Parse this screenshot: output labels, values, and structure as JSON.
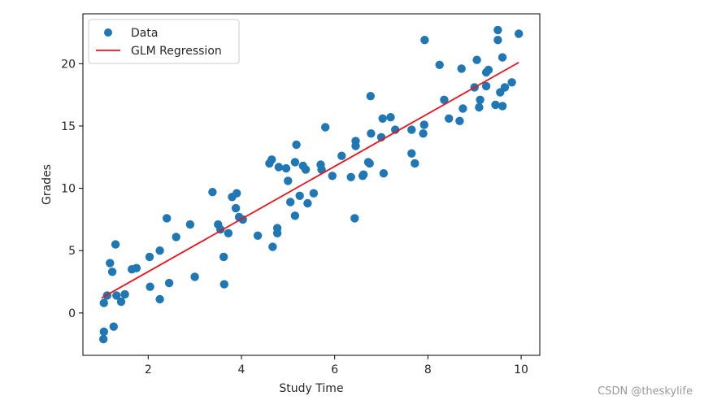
{
  "chart_data": {
    "type": "scatter",
    "title": "",
    "xlabel": "Study Time",
    "ylabel": "Grades",
    "xlim": [
      0.6,
      10.4
    ],
    "ylim": [
      -3.4,
      24.0
    ],
    "xticks": [
      2,
      4,
      6,
      8,
      10
    ],
    "yticks": [
      0,
      5,
      10,
      15,
      20
    ],
    "grid": false,
    "legend_position": "top-left",
    "series": [
      {
        "name": "Data",
        "kind": "scatter",
        "color": "#1f77b4",
        "points": [
          [
            1.05,
            0.8
          ],
          [
            1.05,
            -1.5
          ],
          [
            1.04,
            -2.1
          ],
          [
            1.12,
            1.4
          ],
          [
            1.18,
            4.0
          ],
          [
            1.23,
            3.3
          ],
          [
            1.26,
            -1.1
          ],
          [
            1.3,
            5.5
          ],
          [
            1.32,
            1.4
          ],
          [
            1.42,
            0.9
          ],
          [
            1.5,
            1.5
          ],
          [
            1.65,
            3.5
          ],
          [
            1.75,
            3.6
          ],
          [
            2.03,
            4.5
          ],
          [
            2.04,
            2.1
          ],
          [
            2.25,
            5.0
          ],
          [
            2.25,
            1.1
          ],
          [
            2.4,
            7.6
          ],
          [
            2.45,
            2.4
          ],
          [
            2.6,
            6.1
          ],
          [
            2.9,
            7.1
          ],
          [
            3.0,
            2.9
          ],
          [
            3.38,
            9.7
          ],
          [
            3.5,
            7.1
          ],
          [
            3.55,
            6.7
          ],
          [
            3.62,
            4.5
          ],
          [
            3.63,
            2.3
          ],
          [
            3.72,
            6.4
          ],
          [
            3.8,
            9.3
          ],
          [
            3.88,
            8.4
          ],
          [
            3.9,
            9.6
          ],
          [
            3.95,
            7.7
          ],
          [
            4.03,
            7.5
          ],
          [
            4.35,
            6.2
          ],
          [
            4.6,
            12.0
          ],
          [
            4.65,
            12.3
          ],
          [
            4.67,
            5.3
          ],
          [
            4.77,
            6.8
          ],
          [
            4.77,
            6.4
          ],
          [
            4.8,
            11.7
          ],
          [
            4.96,
            11.6
          ],
          [
            5.0,
            10.6
          ],
          [
            5.05,
            8.9
          ],
          [
            5.15,
            12.1
          ],
          [
            5.15,
            7.8
          ],
          [
            5.18,
            13.5
          ],
          [
            5.25,
            9.4
          ],
          [
            5.32,
            11.8
          ],
          [
            5.38,
            11.5
          ],
          [
            5.42,
            8.8
          ],
          [
            5.55,
            9.6
          ],
          [
            5.7,
            11.9
          ],
          [
            5.72,
            11.5
          ],
          [
            5.8,
            14.9
          ],
          [
            5.95,
            11.0
          ],
          [
            6.15,
            12.6
          ],
          [
            6.35,
            10.9
          ],
          [
            6.43,
            7.6
          ],
          [
            6.45,
            13.8
          ],
          [
            6.45,
            13.4
          ],
          [
            6.6,
            11.0
          ],
          [
            6.62,
            11.1
          ],
          [
            6.72,
            12.1
          ],
          [
            6.75,
            12.0
          ],
          [
            6.77,
            17.4
          ],
          [
            6.78,
            14.4
          ],
          [
            7.0,
            14.1
          ],
          [
            7.03,
            15.6
          ],
          [
            7.05,
            11.2
          ],
          [
            7.2,
            15.7
          ],
          [
            7.3,
            14.7
          ],
          [
            7.65,
            12.8
          ],
          [
            7.65,
            14.7
          ],
          [
            7.72,
            12.0
          ],
          [
            7.9,
            14.4
          ],
          [
            7.92,
            15.1
          ],
          [
            7.93,
            21.9
          ],
          [
            8.25,
            19.9
          ],
          [
            8.35,
            17.1
          ],
          [
            8.45,
            15.6
          ],
          [
            8.68,
            15.4
          ],
          [
            8.72,
            19.6
          ],
          [
            8.75,
            16.4
          ],
          [
            9.0,
            18.1
          ],
          [
            9.05,
            20.3
          ],
          [
            9.1,
            16.5
          ],
          [
            9.12,
            17.1
          ],
          [
            9.25,
            18.2
          ],
          [
            9.25,
            19.3
          ],
          [
            9.3,
            19.5
          ],
          [
            9.45,
            16.7
          ],
          [
            9.5,
            22.7
          ],
          [
            9.5,
            21.9
          ],
          [
            9.55,
            17.7
          ],
          [
            9.6,
            20.5
          ],
          [
            9.6,
            16.6
          ],
          [
            9.65,
            18.1
          ],
          [
            9.8,
            18.5
          ],
          [
            9.95,
            22.4
          ]
        ]
      },
      {
        "name": "GLM Regression",
        "kind": "line",
        "color": "#e8141b",
        "points": [
          [
            1.0,
            1.2
          ],
          [
            9.95,
            20.1
          ]
        ]
      }
    ]
  },
  "watermark": "CSDN @theskylife"
}
